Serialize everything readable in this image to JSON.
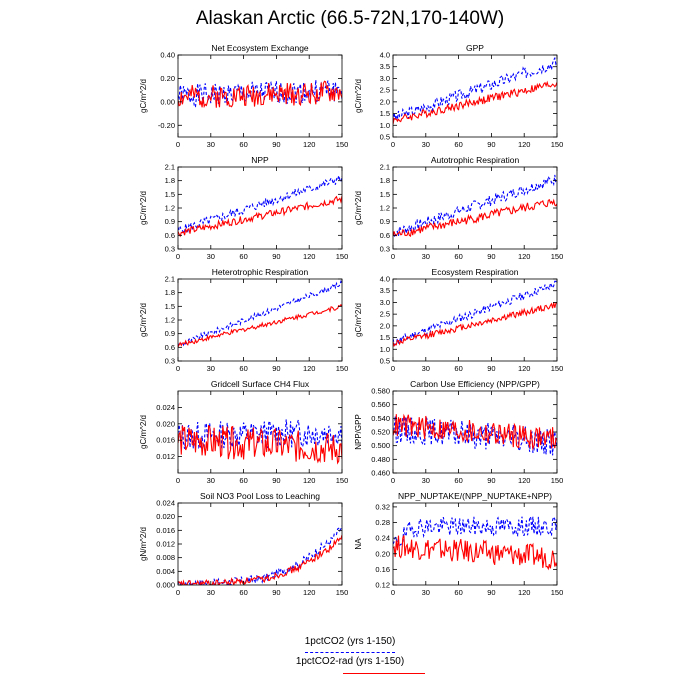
{
  "title": "Alaskan Arctic (66.5-72N,170-140W)",
  "legend": [
    {
      "label": "1pctCO2 (yrs 1-150)",
      "color": "#0000ff",
      "dash": true
    },
    {
      "label": "1pctCO2-rad (yrs 1-150)",
      "color": "#ff0000",
      "dash": false
    }
  ],
  "chart_data": [
    {
      "type": "line",
      "title": "Net Ecosystem Exchange",
      "ylabel": "gC/m^2/d",
      "xlim": [
        0,
        150
      ],
      "xticks": [
        0,
        30,
        60,
        90,
        120,
        150
      ],
      "ylim": [
        -0.3,
        0.4
      ],
      "yticks": [
        -0.2,
        0.0,
        0.2,
        0.4
      ],
      "ytick_labels": [
        "-0.20",
        "0.00",
        "0.20",
        "0.40"
      ],
      "series": [
        {
          "color": "#0000ff",
          "dash": true,
          "trend": [
            [
              0,
              0.05
            ],
            [
              150,
              0.1
            ]
          ],
          "noise": 0.1,
          "seed": 1
        },
        {
          "color": "#ff0000",
          "dash": false,
          "trend": [
            [
              0,
              0.04
            ],
            [
              150,
              0.08
            ]
          ],
          "noise": 0.1,
          "seed": 2
        }
      ]
    },
    {
      "type": "line",
      "title": "GPP",
      "ylabel": "gC/m^2/d",
      "xlim": [
        0,
        150
      ],
      "xticks": [
        0,
        30,
        60,
        90,
        120,
        150
      ],
      "ylim": [
        0.5,
        4.0
      ],
      "yticks": [
        0.5,
        1.0,
        1.5,
        2.0,
        2.5,
        3.0,
        3.5,
        4.0
      ],
      "ytick_labels": [
        "0.5",
        "1.0",
        "1.5",
        "2.0",
        "2.5",
        "3.0",
        "3.5",
        "4.0"
      ],
      "series": [
        {
          "color": "#0000ff",
          "dash": true,
          "trend": [
            [
              0,
              1.3
            ],
            [
              150,
              3.7
            ]
          ],
          "noise": 0.25,
          "seed": 3
        },
        {
          "color": "#ff0000",
          "dash": false,
          "trend": [
            [
              0,
              1.2
            ],
            [
              150,
              2.8
            ]
          ],
          "noise": 0.18,
          "seed": 4
        }
      ]
    },
    {
      "type": "line",
      "title": "NPP",
      "ylabel": "gC/m^2/d",
      "xlim": [
        0,
        150
      ],
      "xticks": [
        0,
        30,
        60,
        90,
        120,
        150
      ],
      "ylim": [
        0.3,
        2.1
      ],
      "yticks": [
        0.3,
        0.6,
        0.9,
        1.2,
        1.5,
        1.8,
        2.1
      ],
      "ytick_labels": [
        "0.3",
        "0.6",
        "0.9",
        "1.2",
        "1.5",
        "1.8",
        "2.1"
      ],
      "series": [
        {
          "color": "#0000ff",
          "dash": true,
          "trend": [
            [
              0,
              0.7
            ],
            [
              150,
              1.85
            ]
          ],
          "noise": 0.1,
          "seed": 5
        },
        {
          "color": "#ff0000",
          "dash": false,
          "trend": [
            [
              0,
              0.65
            ],
            [
              150,
              1.4
            ]
          ],
          "noise": 0.08,
          "seed": 6
        }
      ]
    },
    {
      "type": "line",
      "title": "Autotrophic Respiration",
      "ylabel": "gC/m^2/d",
      "xlim": [
        0,
        150
      ],
      "xticks": [
        0,
        30,
        60,
        90,
        120,
        150
      ],
      "ylim": [
        0.3,
        2.1
      ],
      "yticks": [
        0.3,
        0.6,
        0.9,
        1.2,
        1.5,
        1.8,
        2.1
      ],
      "ytick_labels": [
        "0.3",
        "0.6",
        "0.9",
        "1.2",
        "1.5",
        "1.8",
        "2.1"
      ],
      "series": [
        {
          "color": "#0000ff",
          "dash": true,
          "trend": [
            [
              0,
              0.65
            ],
            [
              150,
              1.85
            ]
          ],
          "noise": 0.12,
          "seed": 7
        },
        {
          "color": "#ff0000",
          "dash": false,
          "trend": [
            [
              0,
              0.6
            ],
            [
              150,
              1.35
            ]
          ],
          "noise": 0.1,
          "seed": 8
        }
      ]
    },
    {
      "type": "line",
      "title": "Heterotrophic Respiration",
      "ylabel": "gC/m^2/d",
      "xlim": [
        0,
        150
      ],
      "xticks": [
        0,
        30,
        60,
        90,
        120,
        150
      ],
      "ylim": [
        0.3,
        2.1
      ],
      "yticks": [
        0.3,
        0.6,
        0.9,
        1.2,
        1.5,
        1.8,
        2.1
      ],
      "ytick_labels": [
        "0.3",
        "0.6",
        "0.9",
        "1.2",
        "1.5",
        "1.8",
        "2.1"
      ],
      "series": [
        {
          "color": "#0000ff",
          "dash": true,
          "trend": [
            [
              0,
              0.65
            ],
            [
              150,
              2.0
            ]
          ],
          "noise": 0.06,
          "seed": 9
        },
        {
          "color": "#ff0000",
          "dash": false,
          "trend": [
            [
              0,
              0.65
            ],
            [
              150,
              1.5
            ]
          ],
          "noise": 0.05,
          "seed": 10
        }
      ]
    },
    {
      "type": "line",
      "title": "Ecosystem Respiration",
      "ylabel": "gC/m^2/d",
      "xlim": [
        0,
        150
      ],
      "xticks": [
        0,
        30,
        60,
        90,
        120,
        150
      ],
      "ylim": [
        0.5,
        4.0
      ],
      "yticks": [
        0.5,
        1.0,
        1.5,
        2.0,
        2.5,
        3.0,
        3.5,
        4.0
      ],
      "ytick_labels": [
        "0.5",
        "1.0",
        "1.5",
        "2.0",
        "2.5",
        "3.0",
        "3.5",
        "4.0"
      ],
      "series": [
        {
          "color": "#0000ff",
          "dash": true,
          "trend": [
            [
              0,
              1.3
            ],
            [
              150,
              3.8
            ]
          ],
          "noise": 0.18,
          "seed": 11
        },
        {
          "color": "#ff0000",
          "dash": false,
          "trend": [
            [
              0,
              1.25
            ],
            [
              150,
              2.9
            ]
          ],
          "noise": 0.14,
          "seed": 12
        }
      ]
    },
    {
      "type": "line",
      "title": "Gridcell Surface CH4 Flux",
      "ylabel": "gC/m^2/d",
      "xlim": [
        0,
        150
      ],
      "xticks": [
        0,
        30,
        60,
        90,
        120,
        150
      ],
      "ylim": [
        0.008,
        0.028
      ],
      "yticks": [
        0.012,
        0.016,
        0.02,
        0.024
      ],
      "ytick_labels": [
        "0.012",
        "0.016",
        "0.020",
        "0.024"
      ],
      "series": [
        {
          "color": "#0000ff",
          "dash": true,
          "trend": [
            [
              0,
              0.017
            ],
            [
              150,
              0.018
            ]
          ],
          "noise": 0.0035,
          "seed": 13
        },
        {
          "color": "#ff0000",
          "dash": false,
          "trend": [
            [
              0,
              0.016
            ],
            [
              150,
              0.014
            ]
          ],
          "noise": 0.004,
          "seed": 14
        }
      ]
    },
    {
      "type": "line",
      "title": "Carbon Use Efficiency (NPP/GPP)",
      "ylabel": "NPP/GPP",
      "xlim": [
        0,
        150
      ],
      "xticks": [
        0,
        30,
        60,
        90,
        120,
        150
      ],
      "ylim": [
        0.46,
        0.58
      ],
      "yticks": [
        0.46,
        0.48,
        0.5,
        0.52,
        0.54,
        0.56,
        0.58
      ],
      "ytick_labels": [
        "0.460",
        "0.480",
        "0.500",
        "0.520",
        "0.540",
        "0.560",
        "0.580"
      ],
      "series": [
        {
          "color": "#0000ff",
          "dash": true,
          "trend": [
            [
              0,
              0.525
            ],
            [
              150,
              0.505
            ]
          ],
          "noise": 0.02,
          "seed": 15
        },
        {
          "color": "#ff0000",
          "dash": false,
          "trend": [
            [
              0,
              0.53
            ],
            [
              150,
              0.51
            ]
          ],
          "noise": 0.018,
          "seed": 16
        }
      ]
    },
    {
      "type": "line",
      "title": "Soil NO3 Pool Loss to Leaching",
      "ylabel": "gN/m^2/d",
      "xlim": [
        0,
        150
      ],
      "xticks": [
        0,
        30,
        60,
        90,
        120,
        150
      ],
      "ylim": [
        0.0,
        0.024
      ],
      "yticks": [
        0.0,
        0.004,
        0.008,
        0.012,
        0.016,
        0.02,
        0.024
      ],
      "ytick_labels": [
        "0.000",
        "0.004",
        "0.008",
        "0.012",
        "0.016",
        "0.020",
        "0.024"
      ],
      "series": [
        {
          "color": "#0000ff",
          "dash": true,
          "trend": [
            [
              0,
              0.0002
            ],
            [
              40,
              0.0007
            ],
            [
              80,
              0.002
            ],
            [
              110,
              0.006
            ],
            [
              140,
              0.013
            ],
            [
              150,
              0.017
            ]
          ],
          "noise": 0.0012,
          "seed": 17
        },
        {
          "color": "#ff0000",
          "dash": false,
          "trend": [
            [
              0,
              0.0002
            ],
            [
              40,
              0.0006
            ],
            [
              80,
              0.0018
            ],
            [
              110,
              0.005
            ],
            [
              140,
              0.011
            ],
            [
              150,
              0.014
            ]
          ],
          "noise": 0.001,
          "seed": 18
        }
      ]
    },
    {
      "type": "line",
      "title": "NPP_NUPTAKE/(NPP_NUPTAKE+NPP)",
      "ylabel": "NA",
      "xlim": [
        0,
        150
      ],
      "xticks": [
        0,
        30,
        60,
        90,
        120,
        150
      ],
      "ylim": [
        0.12,
        0.33
      ],
      "yticks": [
        0.12,
        0.16,
        0.2,
        0.24,
        0.28,
        0.32
      ],
      "ytick_labels": [
        "0.12",
        "0.16",
        "0.20",
        "0.24",
        "0.28",
        "0.32"
      ],
      "series": [
        {
          "color": "#0000ff",
          "dash": true,
          "trend": [
            [
              0,
              0.22
            ],
            [
              20,
              0.27
            ],
            [
              150,
              0.27
            ]
          ],
          "noise": 0.025,
          "seed": 19
        },
        {
          "color": "#ff0000",
          "dash": false,
          "trend": [
            [
              0,
              0.22
            ],
            [
              150,
              0.19
            ]
          ],
          "noise": 0.03,
          "seed": 20
        }
      ]
    }
  ]
}
